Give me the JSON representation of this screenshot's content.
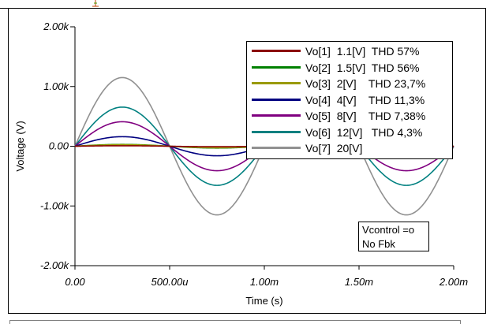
{
  "chart_data": {
    "type": "line",
    "xlabel": "Time (s)",
    "ylabel": "Voltage (V)",
    "xlim": [
      0,
      0.002
    ],
    "ylim": [
      -2000,
      2000
    ],
    "x_ticks": [
      0,
      0.0005,
      0.001,
      0.0015,
      0.002
    ],
    "x_tick_labels": [
      "0.00",
      "500.00u",
      "1.00m",
      "1.50m",
      "2.00m"
    ],
    "y_ticks": [
      2000,
      1000,
      0,
      -1000,
      -2000
    ],
    "y_tick_labels": [
      "2.00k",
      "1.00k",
      "0.00",
      "-1.00k",
      "-2.00k"
    ],
    "grid": false,
    "legend_position": "top-right",
    "frequency_hz": 1000,
    "series": [
      {
        "name": "Vo[1]  1.1[V]  THD 57%",
        "color": "#8b0000",
        "amplitude": 8
      },
      {
        "name": "Vo[2]  1.5[V]  THD 56%",
        "color": "#008000",
        "amplitude": 30
      },
      {
        "name": "Vo[3]  2[V]    THD 23,7%",
        "color": "#9a9a00",
        "amplitude": 25
      },
      {
        "name": "Vo[4]  4[V]    THD 11,3%",
        "color": "#000080",
        "amplitude": 160
      },
      {
        "name": "Vo[5]  8[V]    THD 7,38%",
        "color": "#800080",
        "amplitude": 410
      },
      {
        "name": "Vo[6]  12[V]   THD 4,3%",
        "color": "#008080",
        "amplitude": 655
      },
      {
        "name": "Vo[7]  20[V]",
        "color": "#909090",
        "amplitude": 1150
      }
    ],
    "annotation": [
      "Vcontrol =o",
      "No Fbk"
    ]
  }
}
